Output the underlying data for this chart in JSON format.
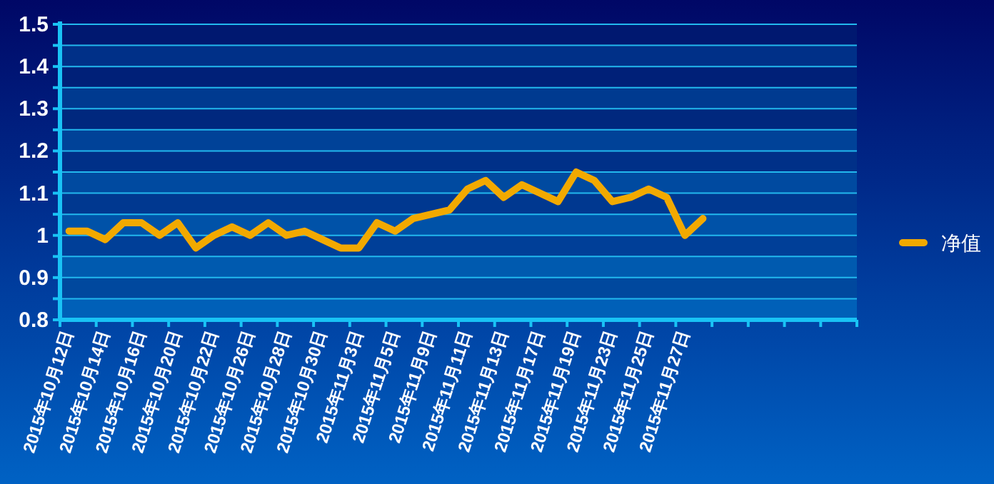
{
  "chart_data": {
    "type": "line",
    "categories": [
      "2015年10月12日",
      null,
      "2015年10月14日",
      null,
      "2015年10月16日",
      null,
      "2015年10月20日",
      null,
      "2015年10月22日",
      null,
      "2015年10月26日",
      null,
      "2015年10月28日",
      null,
      "2015年10月30日",
      null,
      "2015年11月3日",
      null,
      "2015年11月5日",
      null,
      "2015年11月9日",
      null,
      "2015年11月11日",
      null,
      "2015年11月13日",
      null,
      "2015年11月17日",
      null,
      "2015年11月19日",
      null,
      "2015年11月23日",
      null,
      "2015年11月25日",
      null,
      "2015年11月27日",
      null,
      null,
      null,
      null,
      null,
      null,
      null,
      null,
      null
    ],
    "series": [
      {
        "name": "净值",
        "color": "#f2a900",
        "values": [
          1.01,
          1.01,
          0.99,
          1.03,
          1.03,
          1.0,
          1.03,
          0.97,
          1.0,
          1.02,
          1.0,
          1.03,
          1.0,
          1.01,
          0.99,
          0.97,
          0.97,
          1.03,
          1.01,
          1.04,
          1.05,
          1.06,
          1.11,
          1.13,
          1.09,
          1.12,
          1.1,
          1.08,
          1.15,
          1.13,
          1.08,
          1.09,
          1.11,
          1.09,
          1.0,
          1.04,
          null,
          null,
          null,
          null,
          null,
          null,
          null,
          null
        ]
      }
    ],
    "ylim": [
      0.8,
      1.5
    ],
    "yticks": [
      0.8,
      {
        "value": 0.85,
        "label": null
      },
      0.9,
      {
        "value": 0.95,
        "label": null
      },
      1,
      {
        "value": 1.05,
        "label": null
      },
      1.1,
      {
        "value": 1.15,
        "label": null
      },
      1.2,
      {
        "value": 1.25,
        "label": null
      },
      1.3,
      {
        "value": 1.35,
        "label": null
      },
      1.4,
      {
        "value": 1.45,
        "label": null
      },
      1.5
    ],
    "bands": [
      {
        "axis": "y",
        "from": 0.8,
        "to": 0.85,
        "color": "#0060b8"
      },
      {
        "axis": "y",
        "from": 0.85,
        "to": 0.9,
        "color": "#00489e"
      },
      {
        "axis": "y",
        "from": 0.9,
        "to": 0.95,
        "color": "#005aaf"
      },
      {
        "axis": "y",
        "from": 0.95,
        "to": 1.0,
        "color": "#003f98"
      },
      {
        "axis": "y",
        "from": 1.0,
        "to": 1.05,
        "color": "#0052a8"
      },
      {
        "axis": "y",
        "from": 1.05,
        "to": 1.1,
        "color": "#003890"
      },
      {
        "axis": "y",
        "from": 1.1,
        "to": 1.15,
        "color": "#004aa0"
      },
      {
        "axis": "y",
        "from": 1.15,
        "to": 1.2,
        "color": "#003088"
      },
      {
        "axis": "y",
        "from": 1.2,
        "to": 1.25,
        "color": "#004298"
      },
      {
        "axis": "y",
        "from": 1.25,
        "to": 1.3,
        "color": "#00287e"
      },
      {
        "axis": "y",
        "from": 1.3,
        "to": 1.35,
        "color": "#003a90"
      },
      {
        "axis": "y",
        "from": 1.35,
        "to": 1.4,
        "color": "#002078"
      },
      {
        "axis": "y",
        "from": 1.4,
        "to": 1.45,
        "color": "#003088"
      },
      {
        "axis": "y",
        "from": 1.45,
        "to": 1.5,
        "color": "#001870"
      }
    ],
    "grid": "y",
    "legend": "right",
    "marker": "none",
    "line_style": "solid"
  }
}
